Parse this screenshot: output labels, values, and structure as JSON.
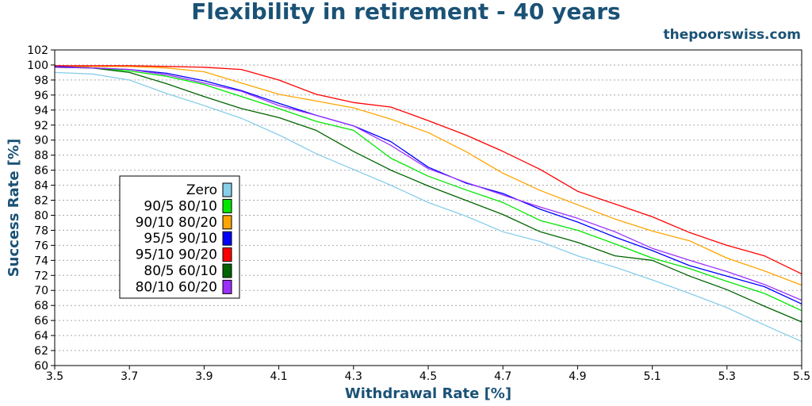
{
  "chart_data": {
    "type": "line",
    "title": "Flexibility in retirement - 40 years",
    "source": "thepoorswiss.com",
    "xlabel": "Withdrawal Rate [%]",
    "ylabel": "Success Rate [%]",
    "xlim": [
      3.5,
      5.5
    ],
    "ylim": [
      60,
      102
    ],
    "xticks": [
      3.5,
      3.7,
      3.9,
      4.1,
      4.3,
      4.5,
      4.7,
      4.9,
      5.1,
      5.3,
      5.5
    ],
    "yticks": [
      60,
      62,
      64,
      66,
      68,
      70,
      72,
      74,
      76,
      78,
      80,
      82,
      84,
      86,
      88,
      90,
      92,
      94,
      96,
      98,
      100,
      102
    ],
    "grid": true,
    "legend_position": "left",
    "x": [
      3.5,
      3.6,
      3.7,
      3.8,
      3.9,
      4.0,
      4.1,
      4.2,
      4.3,
      4.4,
      4.5,
      4.6,
      4.7,
      4.8,
      4.9,
      5.0,
      5.1,
      5.2,
      5.3,
      5.4,
      5.5
    ],
    "series": [
      {
        "name": "Zero",
        "color": "#87ceeb",
        "values": [
          99.0,
          98.8,
          98.0,
          96.2,
          94.6,
          92.9,
          90.7,
          88.2,
          86.1,
          84.0,
          81.7,
          79.9,
          77.8,
          76.5,
          74.6,
          73.1,
          71.4,
          69.6,
          67.7,
          65.4,
          63.2
        ]
      },
      {
        "name": "90/5 80/10",
        "color": "#00e600",
        "values": [
          99.7,
          99.6,
          99.2,
          98.5,
          97.4,
          95.8,
          94.2,
          92.5,
          91.3,
          87.6,
          85.2,
          83.4,
          81.7,
          79.3,
          78.0,
          76.2,
          74.3,
          72.9,
          71.2,
          69.6,
          67.3
        ]
      },
      {
        "name": "90/10 80/20",
        "color": "#ffa500",
        "values": [
          99.8,
          99.8,
          99.8,
          99.6,
          99.1,
          97.6,
          96.1,
          95.2,
          94.3,
          92.8,
          91.0,
          88.5,
          85.6,
          83.3,
          81.4,
          79.5,
          77.9,
          76.6,
          74.3,
          72.6,
          70.7
        ]
      },
      {
        "name": "95/5 90/10",
        "color": "#0000ff",
        "values": [
          99.8,
          99.6,
          99.4,
          98.9,
          97.9,
          96.6,
          94.9,
          93.3,
          91.9,
          89.8,
          86.4,
          84.3,
          82.9,
          80.8,
          79.1,
          77.1,
          75.3,
          73.3,
          71.9,
          70.5,
          68.2
        ]
      },
      {
        "name": "95/10 90/20",
        "color": "#ff0000",
        "values": [
          99.9,
          99.9,
          99.9,
          99.8,
          99.7,
          99.4,
          98.0,
          96.1,
          95.0,
          94.4,
          92.6,
          90.7,
          88.5,
          86.1,
          83.2,
          81.5,
          79.8,
          77.7,
          76.0,
          74.6,
          72.2
        ]
      },
      {
        "name": "80/5 60/10",
        "color": "#006400",
        "values": [
          99.7,
          99.6,
          99.0,
          97.5,
          95.8,
          94.2,
          93.0,
          91.3,
          88.5,
          86.0,
          83.9,
          82.0,
          80.1,
          77.8,
          76.4,
          74.6,
          74.0,
          71.9,
          70.1,
          67.9,
          65.8
        ]
      },
      {
        "name": "80/10 60/20",
        "color": "#9b30ff",
        "values": [
          99.7,
          99.6,
          99.4,
          98.7,
          97.6,
          96.5,
          94.6,
          93.3,
          91.9,
          89.3,
          86.2,
          84.4,
          82.7,
          81.1,
          79.6,
          77.8,
          75.6,
          74.0,
          72.5,
          70.8,
          68.7
        ]
      }
    ]
  }
}
